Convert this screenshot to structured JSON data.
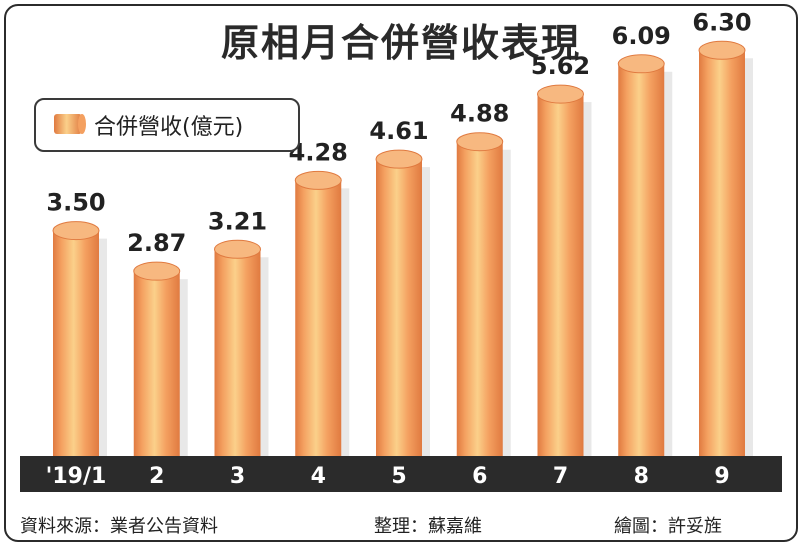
{
  "title": "原相月合併營收表現",
  "legend": {
    "label": "合併營收(億元)"
  },
  "chart_data": {
    "type": "bar",
    "categories": [
      "'19/1",
      "2",
      "3",
      "4",
      "5",
      "6",
      "7",
      "8",
      "9"
    ],
    "series": [
      {
        "name": "合併營收(億元)",
        "values": [
          3.5,
          2.87,
          3.21,
          4.28,
          4.61,
          4.88,
          5.62,
          6.09,
          6.3
        ]
      }
    ],
    "value_labels": [
      "3.50",
      "2.87",
      "3.21",
      "4.28",
      "4.61",
      "4.88",
      "5.62",
      "6.09",
      "6.30"
    ],
    "ylim": [
      0,
      7
    ],
    "grid": false,
    "legend_position": "top-left"
  },
  "colors": {
    "bar_light": "#fbd08a",
    "bar_mid": "#f4a060",
    "bar_dark": "#e07a40",
    "bar_top": "#f7b880",
    "axis_band": "#2b2b2b",
    "axis_text": "#ffffff",
    "shadow": "#d9d9d9"
  },
  "footer": {
    "source": "資料來源：業者公告資料",
    "editor": "整理：蘇嘉維",
    "illustrator": "繪圖：許妥旌"
  }
}
